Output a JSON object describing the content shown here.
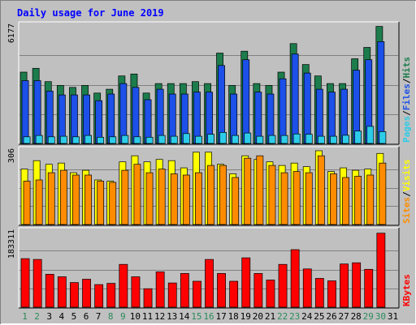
{
  "chart_data": {
    "type": "bar",
    "title": "Daily usage for June 2019",
    "x": [
      "1",
      "2",
      "3",
      "4",
      "5",
      "6",
      "7",
      "8",
      "9",
      "10",
      "11",
      "12",
      "13",
      "14",
      "15",
      "16",
      "17",
      "18",
      "19",
      "20",
      "21",
      "22",
      "23",
      "24",
      "25",
      "26",
      "27",
      "28",
      "29",
      "30",
      "31"
    ],
    "weekend_days": [
      "1",
      "2",
      "8",
      "9",
      "15",
      "16",
      "22",
      "23",
      "29",
      "30"
    ],
    "panels": [
      {
        "name": "hits_files_pages",
        "max_label": "6177",
        "ymax": 6177,
        "legend": [
          "Pages",
          "/",
          "Files",
          "/",
          "Hits"
        ],
        "series": [
          {
            "name": "Hits",
            "color": "#1c7c4c",
            "values": [
              3750,
              3950,
              3250,
              3050,
              2950,
              3050,
              2650,
              2850,
              3550,
              3650,
              2650,
              3150,
              3150,
              3150,
              3250,
              3150,
              4750,
              3050,
              4850,
              3150,
              3050,
              3750,
              5250,
              4150,
              3550,
              3150,
              3150,
              4450,
              5050,
              6150,
              0
            ]
          },
          {
            "name": "Files",
            "color": "#1c50e8",
            "values": [
              3300,
              3300,
              2750,
              2550,
              2550,
              2550,
              2250,
              2600,
              3150,
              2950,
              2300,
              2850,
              2600,
              2600,
              2700,
              2700,
              4100,
              2600,
              4400,
              2700,
              2600,
              3400,
              4700,
              3700,
              2850,
              2700,
              2850,
              3850,
              4400,
              5350,
              0
            ]
          },
          {
            "name": "Pages",
            "color": "#2ccce8",
            "values": [
              350,
              420,
              350,
              380,
              350,
              420,
              330,
              350,
              420,
              350,
              330,
              420,
              380,
              520,
              380,
              480,
              580,
              420,
              550,
              380,
              420,
              420,
              500,
              480,
              380,
              380,
              430,
              650,
              900,
              620,
              0
            ]
          }
        ]
      },
      {
        "name": "visits_sites",
        "max_label": "306",
        "ymax": 306,
        "legend": [
          "Sites",
          "/",
          "Visits"
        ],
        "series": [
          {
            "name": "Visits",
            "color": "#ffff00",
            "values": [
              230,
              265,
              250,
              255,
              215,
              225,
              185,
              180,
              260,
              285,
              260,
              270,
              265,
              235,
              300,
              300,
              250,
              210,
              285,
              270,
              260,
              245,
              255,
              240,
              306,
              220,
              235,
              225,
              230,
              295,
              0
            ]
          },
          {
            "name": "Sites",
            "color": "#ff8c00",
            "values": [
              180,
              185,
              215,
              225,
              205,
              205,
              180,
              175,
              225,
              250,
              215,
              230,
              210,
              205,
              215,
              245,
              245,
              195,
              275,
              285,
              245,
              215,
              220,
              215,
              285,
              210,
              195,
              200,
              205,
              255,
              0
            ]
          }
        ]
      },
      {
        "name": "kbytes",
        "max_label": "183311",
        "ymax": 183311,
        "legend": [
          "KBytes"
        ],
        "series": [
          {
            "name": "KBytes",
            "color": "#ff0000",
            "values": [
              118000,
              116000,
              80000,
              74000,
              60000,
              68000,
              55000,
              58000,
              104000,
              74000,
              45000,
              86000,
              59000,
              82000,
              63000,
              116000,
              82000,
              63000,
              120000,
              82000,
              66000,
              104000,
              140000,
              93000,
              70000,
              64000,
              105000,
              108000,
              92000,
              180000,
              0
            ]
          }
        ]
      }
    ]
  }
}
